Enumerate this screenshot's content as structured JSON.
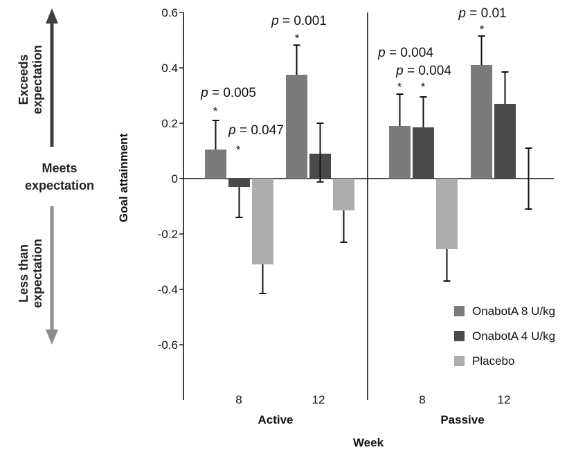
{
  "chart_data": {
    "type": "bar",
    "ylabel": "Goal attainment",
    "xlabel": "Week",
    "ylim": [
      -0.8,
      0.6
    ],
    "yticks": [
      0.6,
      0.4,
      0.2,
      0,
      -0.2,
      -0.4,
      -0.6
    ],
    "ytick_labels": [
      "0.6",
      "0.4",
      "0.2",
      "0",
      "-0.2",
      "-0.4",
      "-0.6"
    ],
    "grid": false,
    "legend_position": "bottom-right",
    "series": [
      {
        "name": "OnabotA 8 U/kg",
        "color": "#7b7b7b"
      },
      {
        "name": "OnabotA 4 U/kg",
        "color": "#4a4a4a"
      },
      {
        "name": "Placebo",
        "color": "#adadad"
      }
    ],
    "groups": [
      {
        "label": "Active",
        "weeks": [
          {
            "week": "8",
            "values": [
              0.105,
              -0.03,
              -0.31
            ],
            "errors": [
              0.105,
              0.11,
              0.105
            ],
            "annotations": [
              {
                "series": 0,
                "star": "*",
                "p": "0.005"
              },
              {
                "series": 1,
                "star": "*",
                "p": "0.047"
              }
            ]
          },
          {
            "week": "12",
            "values": [
              0.375,
              0.09,
              -0.115
            ],
            "errors": [
              0.107,
              0.11,
              0.115
            ],
            "annotations": [
              {
                "series": 0,
                "star": "*",
                "p": "0.001"
              }
            ]
          }
        ]
      },
      {
        "label": "Passive",
        "weeks": [
          {
            "week": "8",
            "values": [
              0.19,
              0.185,
              -0.255
            ],
            "errors": [
              0.115,
              0.11,
              0.115
            ],
            "annotations": [
              {
                "series": 0,
                "star": "*",
                "p": "0.004"
              },
              {
                "series": 1,
                "star": "*",
                "p": "0.004"
              }
            ]
          },
          {
            "week": "12",
            "values": [
              0.41,
              0.27,
              null
            ],
            "errors": [
              0.105,
              0.115,
              0.11
            ],
            "annotations": [
              {
                "series": 0,
                "star": "*",
                "p": "0.01"
              }
            ]
          }
        ]
      }
    ],
    "passive_week12_placebo_error_center": 0.0
  },
  "p_prefix": "p",
  "p_equals": " = ",
  "side_labels": {
    "exceeds": [
      "Exceeds",
      "expectation"
    ],
    "meets": [
      "Meets",
      "expectation"
    ],
    "less": [
      "Less than",
      "expectation"
    ]
  }
}
